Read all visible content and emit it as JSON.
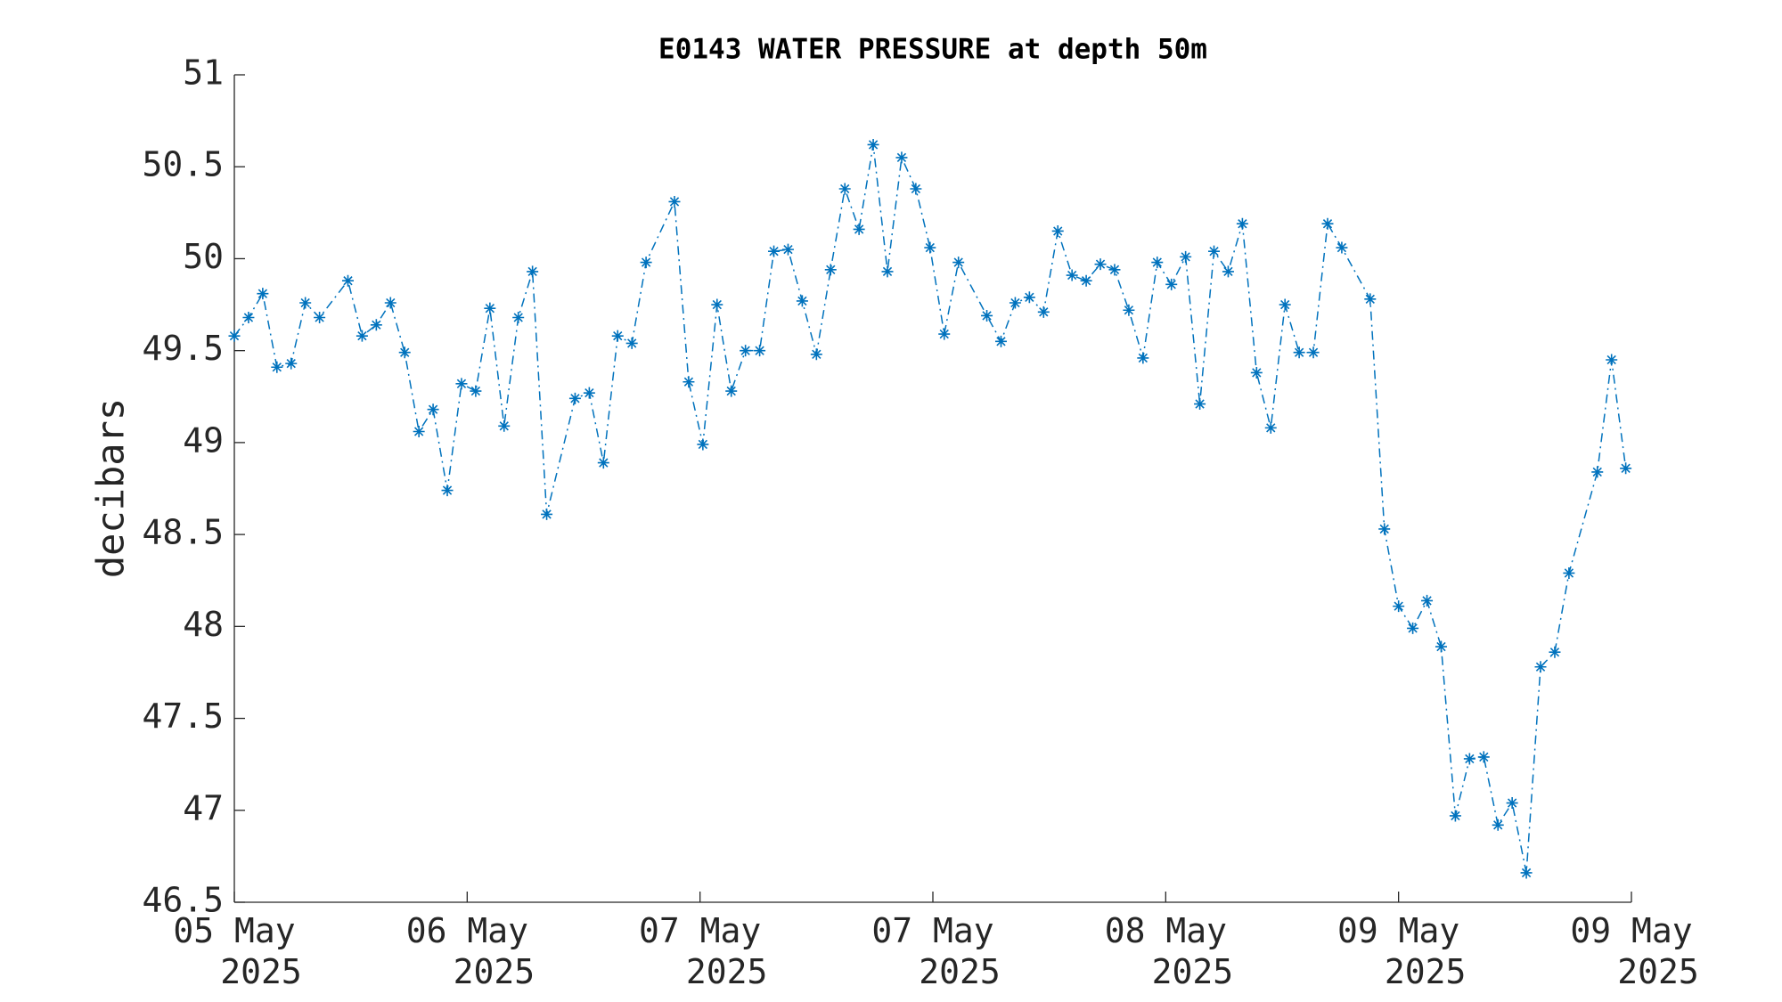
{
  "chart_data": {
    "type": "line",
    "title": "E0143 WATER PRESSURE at depth 50m",
    "ylabel": "decibars",
    "x": [
      0,
      1,
      2,
      3,
      4,
      5,
      6,
      8,
      9,
      10,
      11,
      12,
      13,
      14,
      15,
      16,
      17,
      18,
      19,
      20,
      21,
      22,
      24,
      25,
      26,
      27,
      28,
      29,
      31,
      32,
      33,
      34,
      35,
      36,
      37,
      38,
      39,
      40,
      41,
      42,
      43,
      44,
      45,
      46,
      47,
      48,
      49,
      50,
      51,
      53,
      54,
      55,
      56,
      57,
      58,
      59,
      60,
      61,
      62,
      63,
      64,
      65,
      66,
      67,
      68,
      69,
      70,
      71,
      72,
      73,
      74,
      75,
      76,
      77,
      78,
      80,
      81,
      82,
      83,
      84,
      85,
      86,
      87,
      88,
      89,
      90,
      91,
      92,
      93,
      94,
      96,
      97,
      98
    ],
    "series": [
      {
        "color": "#0072bd",
        "values": [
          49.58,
          49.68,
          49.81,
          49.41,
          49.43,
          49.76,
          49.68,
          49.88,
          49.58,
          49.64,
          49.76,
          49.49,
          49.06,
          49.18,
          48.74,
          49.32,
          49.28,
          49.73,
          49.09,
          49.68,
          49.93,
          48.61,
          49.24,
          49.27,
          48.89,
          49.58,
          49.54,
          49.98,
          50.31,
          49.33,
          48.99,
          49.75,
          49.28,
          49.5,
          49.5,
          50.04,
          50.05,
          49.77,
          49.48,
          49.94,
          50.38,
          50.16,
          50.62,
          49.93,
          50.55,
          50.38,
          50.06,
          49.59,
          49.98,
          49.69,
          49.55,
          49.76,
          49.79,
          49.71,
          50.15,
          49.91,
          49.88,
          49.97,
          49.94,
          49.72,
          49.46,
          49.98,
          49.86,
          50.01,
          49.21,
          50.04,
          49.93,
          50.19,
          49.38,
          49.08,
          49.75,
          49.49,
          49.49,
          50.19,
          50.06,
          49.78,
          48.53,
          48.11,
          47.99,
          48.14,
          47.89,
          46.97,
          47.28,
          47.29,
          46.92,
          47.04,
          46.66,
          47.78,
          47.86,
          48.29,
          48.84,
          49.45,
          48.86
        ]
      }
    ],
    "xlim": [
      0,
      98.4
    ],
    "xticks": [
      {
        "value": 0,
        "label": [
          "05 May",
          "2025"
        ]
      },
      {
        "value": 16.4,
        "label": [
          "06 May",
          "2025"
        ]
      },
      {
        "value": 32.8,
        "label": [
          "07 May",
          "2025"
        ]
      },
      {
        "value": 49.2,
        "label": [
          "07 May",
          "2025"
        ]
      },
      {
        "value": 65.6,
        "label": [
          "08 May",
          "2025"
        ]
      },
      {
        "value": 82,
        "label": [
          "09 May",
          "2025"
        ]
      },
      {
        "value": 98.4,
        "label": [
          "09 May",
          "2025"
        ]
      }
    ],
    "ylim": [
      46.5,
      51
    ],
    "yticks": [
      46.5,
      47,
      47.5,
      48,
      48.5,
      49,
      49.5,
      50,
      50.5,
      51
    ]
  }
}
